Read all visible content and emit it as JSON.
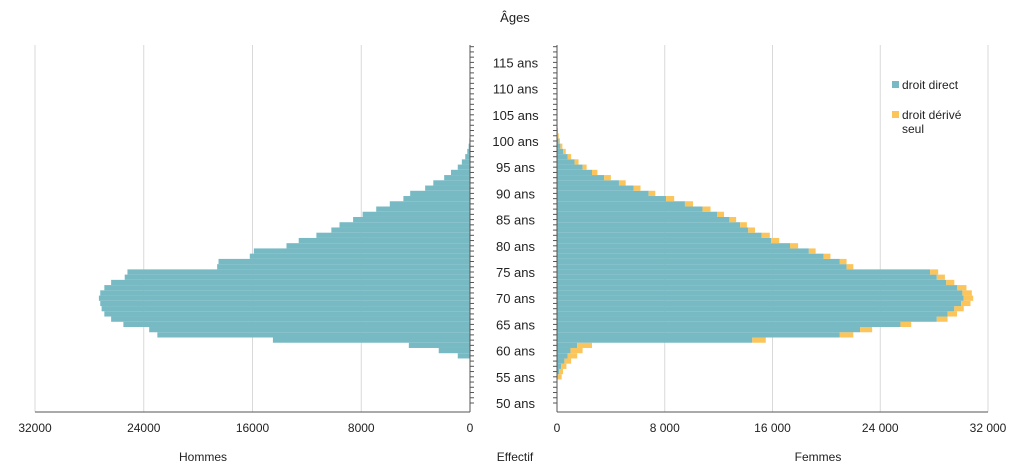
{
  "colors": {
    "direct": "#78bac4",
    "derived": "#fbc55b",
    "grid": "#d9d9d9",
    "axis": "#555555"
  },
  "chart_data": {
    "type": "bar",
    "orientation": "horizontal",
    "subtype": "population-pyramid",
    "title": "Âges",
    "xlabel": "Effectif",
    "left_label": "Hommes",
    "right_label": "Femmes",
    "xlim_left": [
      0,
      32000
    ],
    "xlim_right": [
      0,
      32000
    ],
    "ylim": [
      50,
      120
    ],
    "grid": true,
    "legend_position": "right",
    "age_tick_values": [
      50,
      55,
      60,
      65,
      70,
      75,
      80,
      85,
      90,
      95,
      100,
      105,
      110,
      115
    ],
    "age_tick_labels": [
      "50 ans",
      "55 ans",
      "60 ans",
      "65 ans",
      "70 ans",
      "75 ans",
      "80 ans",
      "85 ans",
      "90 ans",
      "95 ans",
      "100 ans",
      "105 ans",
      "110 ans",
      "115 ans"
    ],
    "left_ticks": [
      32000,
      24000,
      16000,
      8000,
      0
    ],
    "left_tick_labels": [
      "32000",
      "24000",
      "16000",
      "8000",
      "0"
    ],
    "right_ticks": [
      0,
      8000,
      16000,
      24000,
      32000
    ],
    "right_tick_labels": [
      "0",
      "8 000",
      "16 000",
      "24 000",
      "32 000"
    ],
    "legend": [
      "droit direct",
      "droit dérivé seul"
    ],
    "ages": [
      55,
      56,
      57,
      58,
      59,
      60,
      61,
      62,
      63,
      64,
      65,
      66,
      67,
      68,
      69,
      70,
      71,
      72,
      73,
      74,
      75,
      76,
      77,
      78,
      79,
      80,
      81,
      82,
      83,
      84,
      85,
      86,
      87,
      88,
      89,
      90,
      91,
      92,
      93,
      94,
      95,
      96,
      97,
      98,
      99,
      100,
      101,
      102,
      103,
      104
    ],
    "series": [
      {
        "name": "droit direct",
        "men": [
          0,
          0,
          0,
          0,
          900,
          2300,
          4500,
          14500,
          23000,
          23600,
          25500,
          26400,
          26900,
          27100,
          27200,
          27300,
          27200,
          26900,
          26400,
          25400,
          25200,
          18600,
          18500,
          16200,
          15900,
          13500,
          12600,
          11300,
          10200,
          9600,
          8600,
          7900,
          6900,
          5900,
          4900,
          4400,
          3300,
          2700,
          1900,
          1400,
          900,
          600,
          350,
          200,
          100,
          50,
          20,
          10,
          0,
          0
        ],
        "women": [
          0,
          150,
          300,
          550,
          800,
          1000,
          1500,
          14500,
          21000,
          22500,
          25500,
          28200,
          29000,
          29500,
          30000,
          30200,
          30100,
          29700,
          28900,
          28200,
          27700,
          21500,
          21000,
          19800,
          18700,
          17300,
          15900,
          15200,
          14200,
          13600,
          12800,
          11900,
          10800,
          9500,
          8100,
          6800,
          5700,
          4600,
          3500,
          2600,
          1900,
          1300,
          800,
          450,
          250,
          120,
          50,
          20,
          10,
          0
        ]
      },
      {
        "name": "droit dérivé seul",
        "men": [
          0,
          0,
          0,
          0,
          0,
          0,
          0,
          0,
          0,
          0,
          0,
          0,
          0,
          0,
          0,
          0,
          0,
          0,
          0,
          0,
          0,
          0,
          0,
          0,
          0,
          0,
          0,
          0,
          0,
          0,
          0,
          0,
          0,
          0,
          0,
          0,
          0,
          0,
          0,
          0,
          0,
          0,
          0,
          0,
          0,
          0,
          0,
          0,
          0,
          0
        ],
        "women": [
          350,
          300,
          400,
          500,
          700,
          900,
          1100,
          1000,
          1000,
          900,
          800,
          800,
          700,
          700,
          700,
          700,
          700,
          700,
          600,
          600,
          600,
          500,
          500,
          500,
          500,
          600,
          600,
          600,
          500,
          500,
          500,
          500,
          600,
          600,
          600,
          500,
          500,
          500,
          500,
          400,
          300,
          300,
          250,
          200,
          150,
          100,
          80,
          50,
          30,
          10
        ]
      }
    ]
  },
  "legend_labels": {
    "direct": "droit direct",
    "derived": "droit dérivé seul"
  }
}
